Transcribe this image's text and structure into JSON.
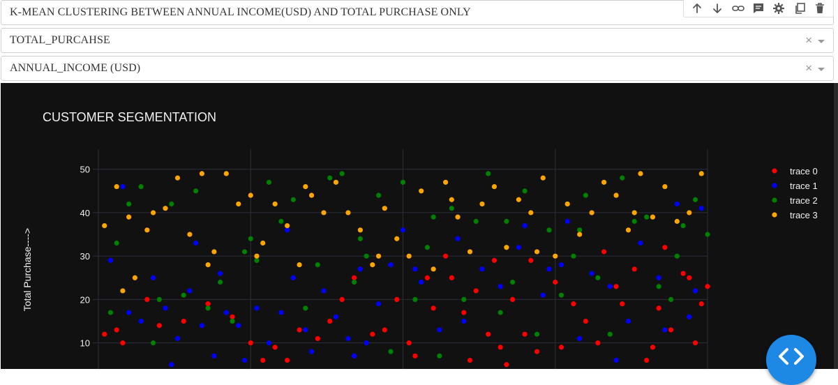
{
  "fields": {
    "title_text": "K-MEAN CLUSTERING BETWEEN ANNUAL INCOME(USD) AND TOTAL PURCHASE ONLY",
    "y_select_value": "TOTAL_PURCAHSE",
    "x_select_value": "ANNUAL_INCOME (USD)",
    "clear_glyph": "×"
  },
  "modebar": {
    "icons": [
      "arrow-up-icon",
      "arrow-down-icon",
      "link-icon",
      "comment-icon",
      "gear-icon",
      "copy-icon",
      "trash-icon"
    ]
  },
  "colors": {
    "background": "#111111",
    "grid": "#2c2f3a",
    "text": "#f2f2f2",
    "trace_0": "#ff0000",
    "trace_1": "#0000ff",
    "trace_2": "#008000",
    "trace_3": "#ffa500"
  },
  "chart_data": {
    "type": "scatter",
    "title": "CUSTOMER SEGMENTATION",
    "xlabel": "",
    "ylabel": "Total Purchase---->",
    "ylim": [
      4,
      53
    ],
    "xlim": [
      0,
      100
    ],
    "yticks": [
      10,
      20,
      30,
      40,
      50
    ],
    "legend_position": "top-right",
    "grid": true,
    "series": [
      {
        "name": "trace 0",
        "color": "#ff0000",
        "points": [
          [
            1,
            12
          ],
          [
            3,
            13
          ],
          [
            4,
            10
          ],
          [
            8,
            20
          ],
          [
            10,
            14
          ],
          [
            14,
            15
          ],
          [
            18,
            19
          ],
          [
            22,
            16
          ],
          [
            25,
            10
          ],
          [
            27,
            6
          ],
          [
            29,
            9
          ],
          [
            31,
            6
          ],
          [
            33,
            13
          ],
          [
            36,
            11
          ],
          [
            38,
            15
          ],
          [
            40,
            20
          ],
          [
            42,
            25
          ],
          [
            45,
            12
          ],
          [
            49,
            20
          ],
          [
            51,
            10
          ],
          [
            52,
            7
          ],
          [
            55,
            18
          ],
          [
            57,
            30
          ],
          [
            58,
            25
          ],
          [
            60,
            17
          ],
          [
            62,
            22
          ],
          [
            64,
            12
          ],
          [
            65,
            29
          ],
          [
            66,
            9
          ],
          [
            68,
            20
          ],
          [
            70,
            12
          ],
          [
            72,
            8
          ],
          [
            75,
            24
          ],
          [
            78,
            19
          ],
          [
            80,
            15
          ],
          [
            82,
            10
          ],
          [
            85,
            23
          ],
          [
            88,
            27
          ],
          [
            90,
            6
          ],
          [
            92,
            18
          ],
          [
            94,
            13
          ],
          [
            96,
            26
          ],
          [
            98,
            10
          ],
          [
            100,
            23
          ],
          [
            47,
            13
          ],
          [
            54,
            25
          ],
          [
            61,
            6
          ],
          [
            67,
            5
          ],
          [
            71,
            29
          ],
          [
            76,
            9
          ],
          [
            83,
            31
          ],
          [
            86,
            19
          ],
          [
            91,
            9
          ],
          [
            93,
            32
          ],
          [
            97,
            25
          ],
          [
            99,
            19
          ]
        ]
      },
      {
        "name": "trace 1",
        "color": "#0000ff",
        "points": [
          [
            2,
            29
          ],
          [
            4,
            46
          ],
          [
            5,
            17
          ],
          [
            7,
            15
          ],
          [
            9,
            25
          ],
          [
            11,
            18
          ],
          [
            13,
            11
          ],
          [
            15,
            22
          ],
          [
            17,
            14
          ],
          [
            19,
            7
          ],
          [
            21,
            17
          ],
          [
            23,
            14
          ],
          [
            24,
            6
          ],
          [
            26,
            18
          ],
          [
            28,
            10
          ],
          [
            30,
            17
          ],
          [
            32,
            25
          ],
          [
            34,
            13
          ],
          [
            35,
            8
          ],
          [
            37,
            22
          ],
          [
            39,
            16
          ],
          [
            41,
            11
          ],
          [
            43,
            27
          ],
          [
            44,
            10
          ],
          [
            46,
            19
          ],
          [
            48,
            28
          ],
          [
            50,
            36
          ],
          [
            53,
            24
          ],
          [
            56,
            13
          ],
          [
            59,
            34
          ],
          [
            63,
            27
          ],
          [
            66,
            23
          ],
          [
            69,
            32
          ],
          [
            73,
            21
          ],
          [
            74,
            27
          ],
          [
            77,
            38
          ],
          [
            79,
            11
          ],
          [
            81,
            26
          ],
          [
            84,
            23
          ],
          [
            87,
            15
          ],
          [
            89,
            33
          ],
          [
            92,
            25
          ],
          [
            95,
            42
          ],
          [
            97,
            16
          ],
          [
            99,
            41
          ],
          [
            12,
            5
          ],
          [
            16,
            33
          ],
          [
            20,
            26
          ],
          [
            31,
            36
          ],
          [
            42,
            7
          ],
          [
            52,
            27
          ],
          [
            60,
            15
          ],
          [
            70,
            37
          ],
          [
            76,
            28
          ],
          [
            85,
            6
          ],
          [
            93,
            13
          ],
          [
            98,
            22
          ]
        ]
      },
      {
        "name": "trace 2",
        "color": "#008000",
        "points": [
          [
            2,
            17
          ],
          [
            5,
            42
          ],
          [
            7,
            46
          ],
          [
            10,
            20
          ],
          [
            12,
            42
          ],
          [
            14,
            21
          ],
          [
            16,
            45
          ],
          [
            18,
            18
          ],
          [
            20,
            24
          ],
          [
            22,
            15
          ],
          [
            24,
            31
          ],
          [
            26,
            29
          ],
          [
            28,
            47
          ],
          [
            30,
            38
          ],
          [
            32,
            43
          ],
          [
            34,
            18
          ],
          [
            36,
            28
          ],
          [
            38,
            48
          ],
          [
            40,
            49
          ],
          [
            42,
            24
          ],
          [
            44,
            30
          ],
          [
            46,
            44
          ],
          [
            48,
            8
          ],
          [
            50,
            47
          ],
          [
            52,
            20
          ],
          [
            54,
            32
          ],
          [
            56,
            7
          ],
          [
            58,
            41
          ],
          [
            60,
            20
          ],
          [
            62,
            38
          ],
          [
            64,
            49
          ],
          [
            66,
            17
          ],
          [
            68,
            24
          ],
          [
            70,
            45
          ],
          [
            72,
            12
          ],
          [
            74,
            36
          ],
          [
            76,
            21
          ],
          [
            78,
            30
          ],
          [
            80,
            44
          ],
          [
            82,
            25
          ],
          [
            84,
            12
          ],
          [
            86,
            48
          ],
          [
            88,
            38
          ],
          [
            90,
            39
          ],
          [
            92,
            23
          ],
          [
            94,
            20
          ],
          [
            96,
            37
          ],
          [
            98,
            43
          ],
          [
            100,
            35
          ],
          [
            3,
            33
          ],
          [
            9,
            10
          ],
          [
            25,
            34
          ],
          [
            43,
            34
          ],
          [
            55,
            39
          ],
          [
            67,
            38
          ],
          [
            79,
            36
          ],
          [
            95,
            30
          ]
        ]
      },
      {
        "name": "trace 3",
        "color": "#ffa500",
        "points": [
          [
            1,
            37
          ],
          [
            3,
            46
          ],
          [
            5,
            39
          ],
          [
            6,
            25
          ],
          [
            8,
            36
          ],
          [
            9,
            40
          ],
          [
            11,
            41
          ],
          [
            13,
            48
          ],
          [
            15,
            35
          ],
          [
            17,
            49
          ],
          [
            19,
            31
          ],
          [
            21,
            49
          ],
          [
            23,
            42
          ],
          [
            25,
            44
          ],
          [
            27,
            33
          ],
          [
            29,
            42
          ],
          [
            31,
            37
          ],
          [
            33,
            28
          ],
          [
            35,
            44
          ],
          [
            37,
            40
          ],
          [
            39,
            47
          ],
          [
            41,
            40
          ],
          [
            43,
            36
          ],
          [
            45,
            28
          ],
          [
            47,
            41
          ],
          [
            49,
            34
          ],
          [
            51,
            30
          ],
          [
            53,
            45
          ],
          [
            55,
            27
          ],
          [
            57,
            47
          ],
          [
            59,
            39
          ],
          [
            61,
            31
          ],
          [
            63,
            42
          ],
          [
            65,
            46
          ],
          [
            67,
            32
          ],
          [
            69,
            43
          ],
          [
            71,
            40
          ],
          [
            73,
            48
          ],
          [
            75,
            30
          ],
          [
            77,
            42
          ],
          [
            79,
            35
          ],
          [
            81,
            40
          ],
          [
            83,
            47
          ],
          [
            85,
            44
          ],
          [
            87,
            36
          ],
          [
            89,
            49
          ],
          [
            91,
            39
          ],
          [
            93,
            46
          ],
          [
            95,
            38
          ],
          [
            97,
            40
          ],
          [
            99,
            49
          ],
          [
            4,
            22
          ],
          [
            18,
            28
          ],
          [
            26,
            30
          ],
          [
            34,
            46
          ],
          [
            46,
            30
          ],
          [
            58,
            43
          ],
          [
            72,
            31
          ],
          [
            88,
            40
          ]
        ]
      }
    ]
  }
}
